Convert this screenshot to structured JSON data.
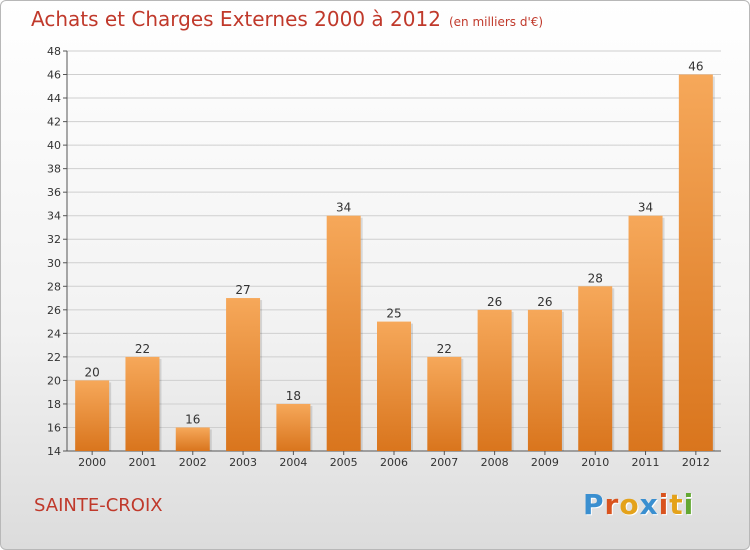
{
  "header": {
    "title": "Achats et Charges Externes 2000 à 2012",
    "unit": "(en milliers d'€)"
  },
  "footer": {
    "commune": "SAINTE-CROIX",
    "logo_text": "Proxiti",
    "logo_colors": [
      "#3a8fd0",
      "#d9531e",
      "#e4a21a",
      "#3a8fd0",
      "#d9531e",
      "#e4a21a",
      "#63a832"
    ]
  },
  "colors": {
    "title": "#c0392b",
    "bar_light": "#f6a85a",
    "bar_dark": "#d9751d",
    "grid": "#cfcfcf"
  },
  "chart_data": {
    "type": "bar",
    "title": "Achats et Charges Externes 2000 à 2012",
    "subtitle": "(en milliers d'€)",
    "categories": [
      "2000",
      "2001",
      "2002",
      "2003",
      "2004",
      "2005",
      "2006",
      "2007",
      "2008",
      "2009",
      "2010",
      "2011",
      "2012"
    ],
    "values": [
      20,
      22,
      16,
      27,
      18,
      34,
      25,
      22,
      26,
      26,
      28,
      34,
      46
    ],
    "ylim": [
      14,
      48
    ],
    "yticks": [
      14,
      16,
      18,
      20,
      22,
      24,
      26,
      28,
      30,
      32,
      34,
      36,
      38,
      40,
      42,
      44,
      46,
      48
    ],
    "grid": true,
    "data_labels": true
  }
}
